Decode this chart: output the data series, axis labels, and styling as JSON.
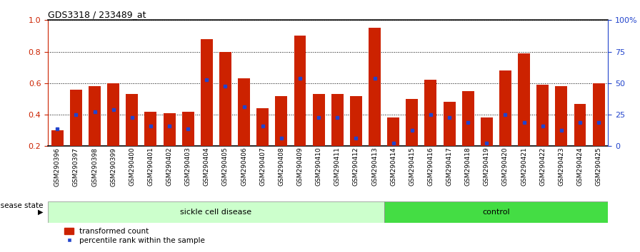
{
  "title": "GDS3318 / 233489_at",
  "samples": [
    "GSM290396",
    "GSM290397",
    "GSM290398",
    "GSM290399",
    "GSM290400",
    "GSM290401",
    "GSM290402",
    "GSM290403",
    "GSM290404",
    "GSM290405",
    "GSM290406",
    "GSM290407",
    "GSM290408",
    "GSM290409",
    "GSM290410",
    "GSM290411",
    "GSM290412",
    "GSM290413",
    "GSM290414",
    "GSM290415",
    "GSM290416",
    "GSM290417",
    "GSM290418",
    "GSM290419",
    "GSM290420",
    "GSM290421",
    "GSM290422",
    "GSM290423",
    "GSM290424",
    "GSM290425"
  ],
  "bar_values": [
    0.3,
    0.56,
    0.58,
    0.6,
    0.53,
    0.42,
    0.41,
    0.42,
    0.88,
    0.8,
    0.63,
    0.44,
    0.52,
    0.9,
    0.53,
    0.53,
    0.52,
    0.95,
    0.38,
    0.5,
    0.62,
    0.48,
    0.55,
    0.38,
    0.68,
    0.79,
    0.59,
    0.58,
    0.47,
    0.6
  ],
  "blue_dot_values": [
    0.31,
    0.4,
    0.42,
    0.43,
    0.38,
    0.33,
    0.33,
    0.31,
    0.62,
    0.58,
    0.45,
    0.33,
    0.25,
    0.63,
    0.38,
    0.38,
    0.25,
    0.63,
    0.22,
    0.3,
    0.4,
    0.38,
    0.35,
    0.22,
    0.4,
    0.35,
    0.33,
    0.3,
    0.35,
    0.35
  ],
  "sickle_count": 18,
  "control_count": 12,
  "bar_color": "#cc2200",
  "dot_color": "#2244cc",
  "sickle_color": "#ccffcc",
  "control_color": "#44dd44",
  "sickle_label": "sickle cell disease",
  "control_label": "control",
  "disease_state_label": "disease state",
  "legend_bar": "transformed count",
  "legend_dot": "percentile rank within the sample",
  "ylim": [
    0.2,
    1.0
  ],
  "yticks": [
    0.2,
    0.4,
    0.6,
    0.8,
    1.0
  ],
  "right_yticks": [
    0,
    25,
    50,
    75,
    100
  ],
  "right_ytick_labels": [
    "0",
    "25",
    "50",
    "75",
    "100%"
  ]
}
